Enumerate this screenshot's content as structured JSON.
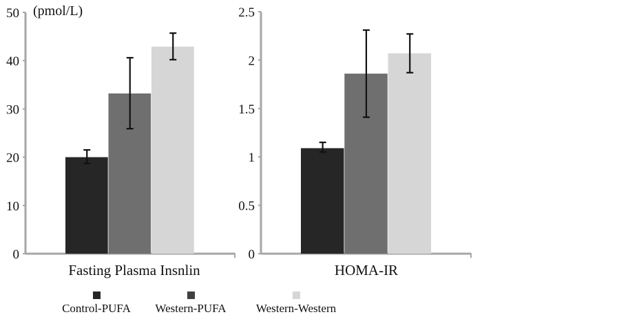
{
  "chart_data": [
    {
      "type": "bar",
      "title": "",
      "xlabel": "",
      "ylabel": "",
      "unit_annotation": "(pmol/L)",
      "categories": [
        "Fasting Plasma Insnlin"
      ],
      "category_label": "Fasting Plasma Insnlin",
      "ylim": [
        0,
        50
      ],
      "yticks": [
        0,
        10,
        20,
        30,
        40,
        50
      ],
      "ytick_labels": [
        "0",
        "10",
        "20",
        "30",
        "40",
        "50"
      ],
      "grid": false,
      "series": [
        {
          "name": "Control-PUFA",
          "values": [
            20.0
          ],
          "error_low": [
            18.7
          ],
          "error_high": [
            21.5
          ],
          "color": "#262626"
        },
        {
          "name": "Western-PUFA",
          "values": [
            33.2
          ],
          "error_low": [
            25.9
          ],
          "error_high": [
            40.6
          ],
          "color": "#6f6f6f"
        },
        {
          "name": "Western-Western",
          "values": [
            42.9
          ],
          "error_low": [
            40.2
          ],
          "error_high": [
            45.7
          ],
          "color": "#d6d6d6"
        }
      ]
    },
    {
      "type": "bar",
      "title": "",
      "xlabel": "",
      "ylabel": "",
      "categories": [
        "HOMA-IR"
      ],
      "category_label": "HOMA-IR",
      "ylim": [
        0,
        2.5
      ],
      "yticks": [
        0,
        0.5,
        1,
        1.5,
        2,
        2.5
      ],
      "ytick_labels": [
        "0",
        "0.5",
        "1",
        "1.5",
        "2",
        "2.5"
      ],
      "grid": false,
      "series": [
        {
          "name": "Control-PUFA",
          "values": [
            1.09
          ],
          "error_low": [
            1.05
          ],
          "error_high": [
            1.15
          ],
          "color": "#262626"
        },
        {
          "name": "Western-PUFA",
          "values": [
            1.86
          ],
          "error_low": [
            1.41
          ],
          "error_high": [
            2.31
          ],
          "color": "#6f6f6f"
        },
        {
          "name": "Western-Western",
          "values": [
            2.07
          ],
          "error_low": [
            1.87
          ],
          "error_high": [
            2.27
          ],
          "color": "#d6d6d6"
        }
      ]
    }
  ],
  "legend": {
    "placement": "bottom",
    "items": [
      {
        "label": "Control-PUFA",
        "color": "#262626"
      },
      {
        "label": "Western-PUFA",
        "color": "#404040"
      },
      {
        "label": "Western-Western",
        "color": "#d6d6d6"
      }
    ]
  }
}
